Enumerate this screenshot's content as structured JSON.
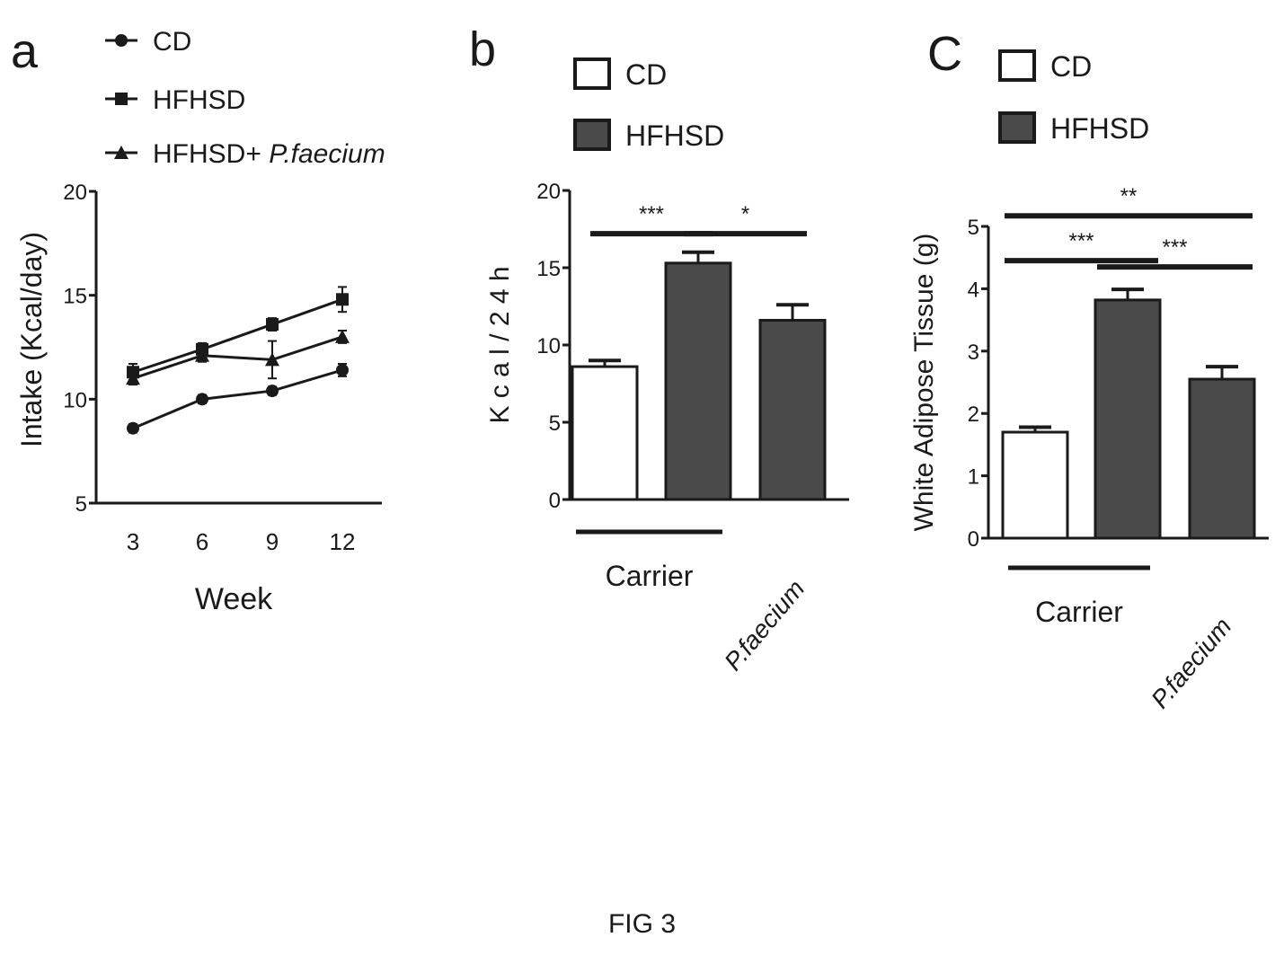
{
  "figure": {
    "caption": "FIG 3"
  },
  "colors": {
    "ink": "#1a1a1a",
    "dark_fill": "#4a4a4a",
    "light_fill": "#ffffff"
  },
  "chart_data": [
    {
      "panel_label": "a",
      "type": "line",
      "xlabel": "Week",
      "ylabel": "Intake (Kcal/day)",
      "x": [
        3,
        6,
        9,
        12
      ],
      "xticks": [
        "3",
        "6",
        "9",
        "12"
      ],
      "yticks": [
        "5",
        "10",
        "15",
        "20"
      ],
      "ylim": [
        5,
        20
      ],
      "grid": false,
      "legend_position": "top",
      "series": [
        {
          "name": "CD",
          "marker": "circle",
          "values": [
            8.6,
            10.0,
            10.4,
            11.4
          ],
          "errors": [
            0.2,
            0.2,
            0.2,
            0.3
          ]
        },
        {
          "name": "HFHSD",
          "marker": "square",
          "values": [
            11.3,
            12.4,
            13.6,
            14.8
          ],
          "errors": [
            0.4,
            0.3,
            0.3,
            0.6
          ]
        },
        {
          "name": "HFHSD+ ",
          "name_italic": "P.faecium",
          "marker": "triangle",
          "values": [
            11.0,
            12.1,
            11.9,
            13.0
          ],
          "errors": [
            0.3,
            0.3,
            0.9,
            0.3
          ]
        }
      ]
    },
    {
      "panel_label": "b",
      "type": "bar",
      "ylabel": "K c a l / 2 4 h",
      "ylim": [
        0,
        20
      ],
      "yticks": [
        "0",
        "5",
        "10",
        "15",
        "20"
      ],
      "grid": false,
      "legend_position": "top",
      "legend": [
        {
          "name": "CD",
          "fill": "light"
        },
        {
          "name": "HFHSD",
          "fill": "dark"
        }
      ],
      "bars": [
        {
          "group": "CD",
          "value": 8.6,
          "error": 0.4,
          "fill": "light"
        },
        {
          "group": "HFHSD",
          "value": 15.3,
          "error": 0.7,
          "fill": "dark"
        },
        {
          "group": "HFHSD",
          "value": 11.6,
          "error": 1.0,
          "fill": "dark"
        }
      ],
      "group_labels": [
        "Carrier",
        "P.faecium"
      ],
      "significance": [
        {
          "from": 0,
          "to": 1,
          "label": "***",
          "level": 17.2
        },
        {
          "from": 1,
          "to": 2,
          "label": "*",
          "level": 17.2
        }
      ]
    },
    {
      "panel_label": "C",
      "type": "bar",
      "ylabel": "White Adipose Tissue (g)",
      "ylim": [
        0,
        5
      ],
      "yticks": [
        "0",
        "1",
        "2",
        "3",
        "4",
        "5"
      ],
      "grid": false,
      "legend_position": "top",
      "legend": [
        {
          "name": "CD",
          "fill": "light"
        },
        {
          "name": "HFHSD",
          "fill": "dark"
        }
      ],
      "bars": [
        {
          "group": "CD",
          "value": 1.7,
          "error": 0.08,
          "fill": "light"
        },
        {
          "group": "HFHSD",
          "value": 3.82,
          "error": 0.17,
          "fill": "dark"
        },
        {
          "group": "HFHSD",
          "value": 2.55,
          "error": 0.2,
          "fill": "dark"
        }
      ],
      "group_labels": [
        "Carrier",
        "P.faecium"
      ],
      "significance": [
        {
          "from": 0,
          "to": 1,
          "label": "***",
          "level": 4.45
        },
        {
          "from": 1,
          "to": 2,
          "label": "***",
          "level": 4.35
        },
        {
          "from": 0,
          "to": 2,
          "label": "**",
          "level": 5.17
        }
      ]
    }
  ]
}
